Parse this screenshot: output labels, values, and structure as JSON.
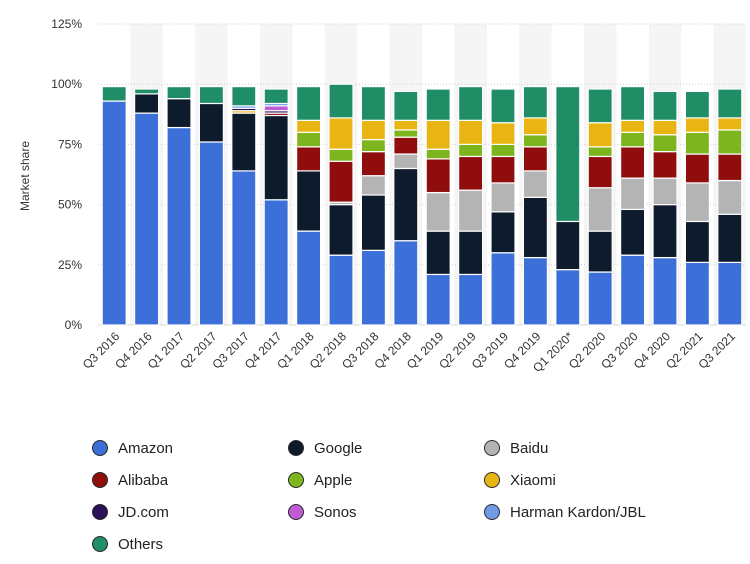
{
  "chart_data": {
    "type": "bar",
    "stacked": true,
    "ylabel": "Market share",
    "xlabel": "",
    "ylim": [
      0,
      125
    ],
    "yticks": [
      0,
      25,
      50,
      75,
      100,
      125
    ],
    "ytick_labels": [
      "0%",
      "25%",
      "50%",
      "75%",
      "100%",
      "125%"
    ],
    "grid": true,
    "legend_position": "bottom",
    "categories": [
      "Q3 2016",
      "Q4 2016",
      "Q1 2017",
      "Q2 2017",
      "Q3 2017",
      "Q4 2017",
      "Q1 2018",
      "Q2 2018",
      "Q3 2018",
      "Q4 2018",
      "Q1 2019",
      "Q2 2019",
      "Q3 2019",
      "Q4 2019",
      "Q1 2020*",
      "Q2 2020",
      "Q3 2020",
      "Q4 2020",
      "Q2 2021",
      "Q3 2021"
    ],
    "series": [
      {
        "name": "Amazon",
        "color": "#3c6fd8",
        "values": [
          93,
          88,
          82,
          76,
          64,
          52,
          39,
          29,
          31,
          35,
          21,
          21,
          30,
          28,
          23,
          22,
          29,
          28,
          26,
          26
        ]
      },
      {
        "name": "Google",
        "color": "#0e1b2c",
        "values": [
          0,
          8,
          12,
          16,
          24,
          35,
          25,
          21,
          23,
          30,
          18,
          18,
          17,
          25,
          20,
          17,
          19,
          22,
          17,
          20
        ]
      },
      {
        "name": "Baidu",
        "color": "#b4b4b4",
        "values": [
          0,
          0,
          0,
          0,
          0,
          0,
          0,
          1,
          8,
          6,
          16,
          17,
          12,
          11,
          0,
          18,
          13,
          11,
          16,
          14
        ]
      },
      {
        "name": "Alibaba",
        "color": "#8f0d0d",
        "values": [
          0,
          0,
          0,
          0,
          0,
          1,
          10,
          17,
          10,
          7,
          14,
          14,
          11,
          10,
          0,
          13,
          13,
          11,
          12,
          11
        ]
      },
      {
        "name": "Apple",
        "color": "#7db51e",
        "values": [
          0,
          0,
          0,
          0,
          0,
          0,
          6,
          5,
          5,
          3,
          4,
          5,
          5,
          5,
          0,
          4,
          6,
          7,
          9,
          10
        ]
      },
      {
        "name": "Xiaomi",
        "color": "#e9b513",
        "values": [
          0,
          0,
          0,
          0,
          1,
          0,
          5,
          13,
          8,
          4,
          12,
          10,
          9,
          7,
          0,
          10,
          5,
          6,
          6,
          5
        ]
      },
      {
        "name": "JD.com",
        "color": "#2d0f5a",
        "values": [
          0,
          0,
          0,
          0,
          1,
          1,
          0,
          0,
          0,
          0,
          0,
          0,
          0,
          0,
          0,
          0,
          0,
          0,
          0,
          0
        ]
      },
      {
        "name": "Sonos",
        "color": "#c05bd6",
        "values": [
          0,
          0,
          0,
          0,
          0,
          2,
          0,
          0,
          0,
          0,
          0,
          0,
          0,
          0,
          0,
          0,
          0,
          0,
          0,
          0
        ]
      },
      {
        "name": "Harman Kardon/JBL",
        "color": "#6f9be6",
        "values": [
          0,
          0,
          0,
          0,
          1,
          1,
          0,
          0,
          0,
          0,
          0,
          0,
          0,
          0,
          0,
          0,
          0,
          0,
          0,
          0
        ]
      },
      {
        "name": "Others",
        "color": "#1f8e66",
        "values": [
          6,
          2,
          5,
          7,
          8,
          6,
          14,
          14,
          14,
          12,
          13,
          14,
          14,
          13,
          56,
          14,
          14,
          12,
          11,
          12
        ]
      }
    ]
  }
}
